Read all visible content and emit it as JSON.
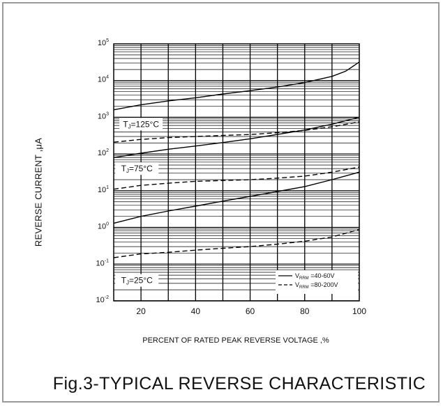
{
  "chart_data": {
    "type": "line",
    "title": "",
    "caption": "Fig.3-TYPICAL REVERSE CHARACTERISTIC",
    "xlabel": "PERCENT OF RATED PEAK REVERSE VOLTAGE ,%",
    "ylabel": "REVERSE CURRENT ,μA",
    "xlim": [
      10,
      100
    ],
    "ylim": [
      0.01,
      100000
    ],
    "y_scale": "log",
    "grid": true,
    "x_ticks": [
      20,
      40,
      60,
      80,
      100
    ],
    "y_ticks": [
      {
        "value": 0.01,
        "base": "10",
        "exp": "-2"
      },
      {
        "value": 0.1,
        "base": "10",
        "exp": "-1"
      },
      {
        "value": 1,
        "base": "10",
        "exp": "0"
      },
      {
        "value": 10,
        "base": "10",
        "exp": "1"
      },
      {
        "value": 100,
        "base": "10",
        "exp": "2"
      },
      {
        "value": 1000,
        "base": "10",
        "exp": "3"
      },
      {
        "value": 10000,
        "base": "10",
        "exp": "4"
      },
      {
        "value": 100000,
        "base": "10",
        "exp": "5"
      }
    ],
    "legend": {
      "placement": "bottom-right",
      "entries": [
        {
          "label": "V",
          "sub": "RRM",
          "suffix": " =40-60V",
          "style": "solid"
        },
        {
          "label": "V",
          "sub": "RRM",
          "suffix": " =80-200V",
          "style": "dashed"
        }
      ]
    },
    "annotations": [
      {
        "text": "T",
        "sub": "J",
        "suffix": "=125°C",
        "x": 20,
        "y": 650
      },
      {
        "text": "T",
        "sub": "J",
        "suffix": "=75°C",
        "x": 18.5,
        "y": 40
      },
      {
        "text": "T",
        "sub": "J",
        "suffix": "=25°C",
        "x": 18.5,
        "y": 0.036
      }
    ],
    "series": [
      {
        "style": "solid",
        "x": [
          10,
          20,
          30,
          40,
          50,
          60,
          70,
          80,
          90,
          95,
          100
        ],
        "y": [
          1600,
          2200,
          2800,
          3400,
          4300,
          5300,
          6700,
          8800,
          13000,
          18000,
          32000
        ]
      },
      {
        "style": "dashed",
        "x": [
          10,
          20,
          30,
          40,
          50,
          60,
          70,
          80,
          90,
          100
        ],
        "y": [
          210,
          250,
          280,
          300,
          320,
          340,
          380,
          440,
          550,
          750
        ]
      },
      {
        "style": "solid",
        "x": [
          10,
          20,
          30,
          40,
          50,
          60,
          70,
          80,
          90,
          100
        ],
        "y": [
          80,
          105,
          135,
          165,
          205,
          260,
          340,
          450,
          650,
          1000
        ]
      },
      {
        "style": "dashed",
        "x": [
          10,
          20,
          30,
          40,
          50,
          60,
          70,
          80,
          90,
          100
        ],
        "y": [
          11,
          14,
          16,
          18,
          19,
          20,
          22,
          25,
          32,
          44
        ]
      },
      {
        "style": "solid",
        "x": [
          10,
          20,
          30,
          40,
          50,
          60,
          70,
          80,
          90,
          100
        ],
        "y": [
          1.3,
          2.0,
          2.8,
          3.8,
          5.2,
          7.0,
          9.5,
          13,
          20,
          32
        ]
      },
      {
        "style": "dashed",
        "x": [
          10,
          20,
          30,
          40,
          50,
          60,
          70,
          80,
          90,
          100
        ],
        "y": [
          0.15,
          0.19,
          0.21,
          0.24,
          0.27,
          0.3,
          0.35,
          0.42,
          0.55,
          0.88
        ]
      }
    ]
  }
}
